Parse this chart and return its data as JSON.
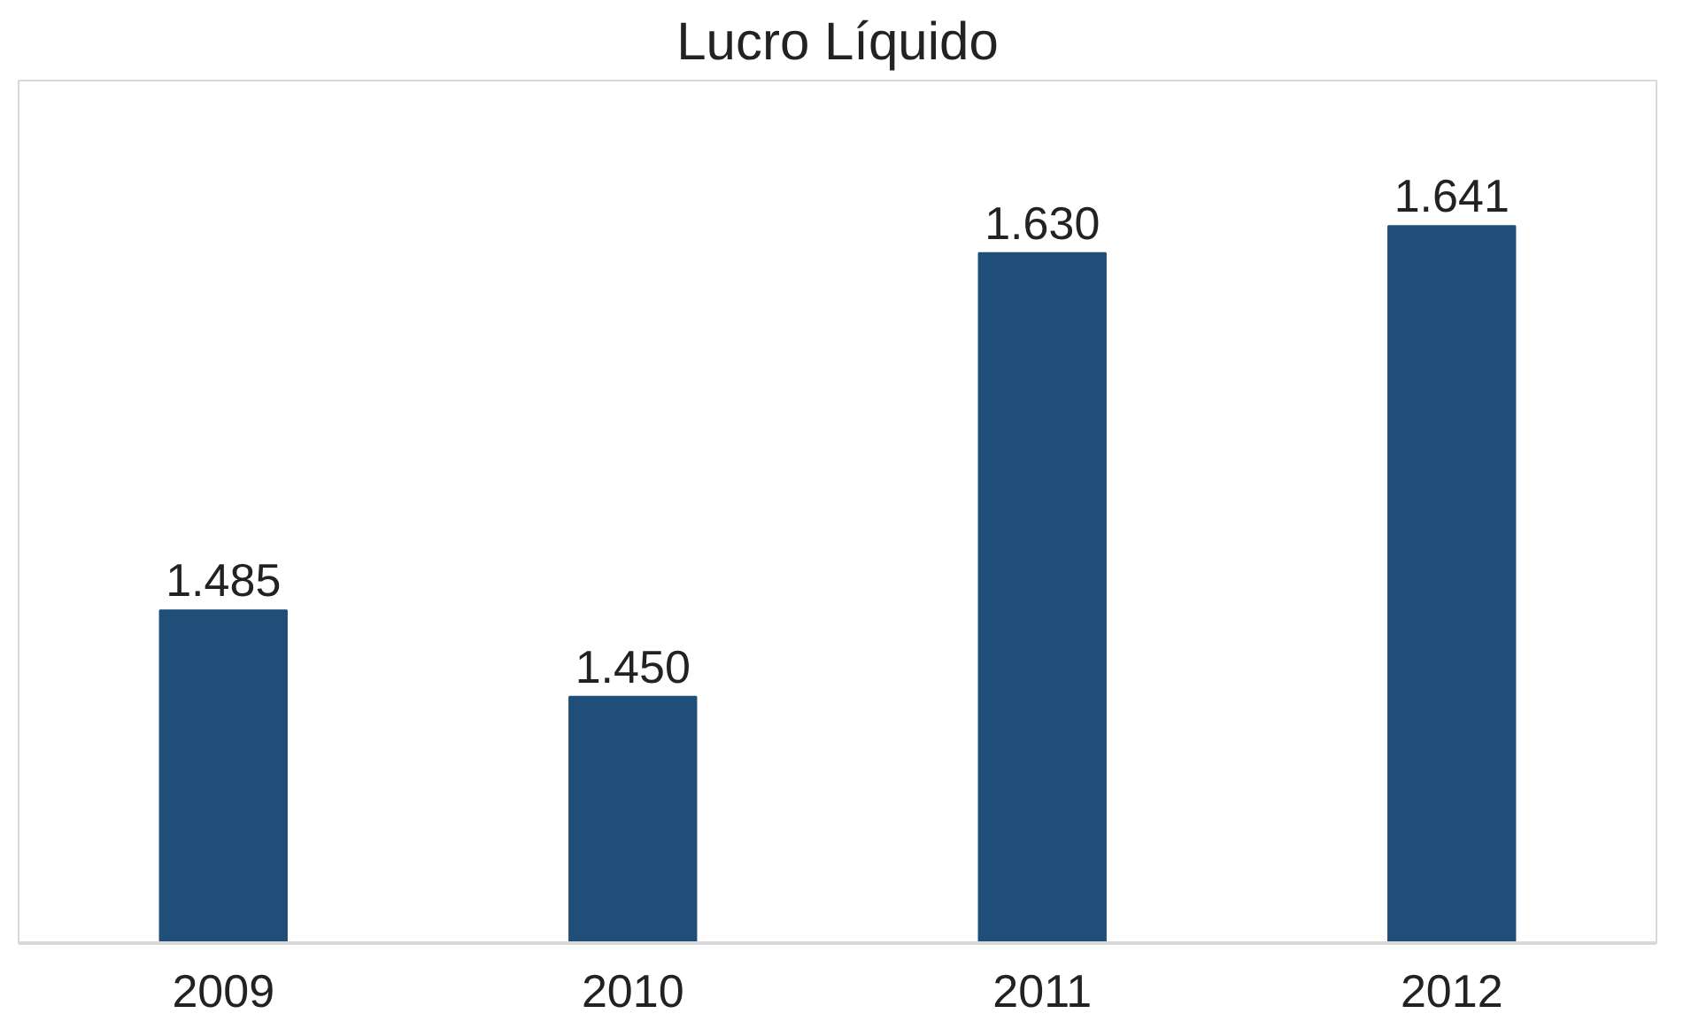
{
  "chart_data": {
    "type": "bar",
    "title": "Lucro Líquido",
    "categories": [
      "2009",
      "2010",
      "2011",
      "2012"
    ],
    "values": [
      1485,
      1450,
      1630,
      1641
    ],
    "value_labels": [
      "1.485",
      "1.450",
      "1.630",
      "1.641"
    ],
    "color": "#1f4e79",
    "ylim": [
      1350,
      1700
    ],
    "tick_labels": "x",
    "grid": false
  }
}
